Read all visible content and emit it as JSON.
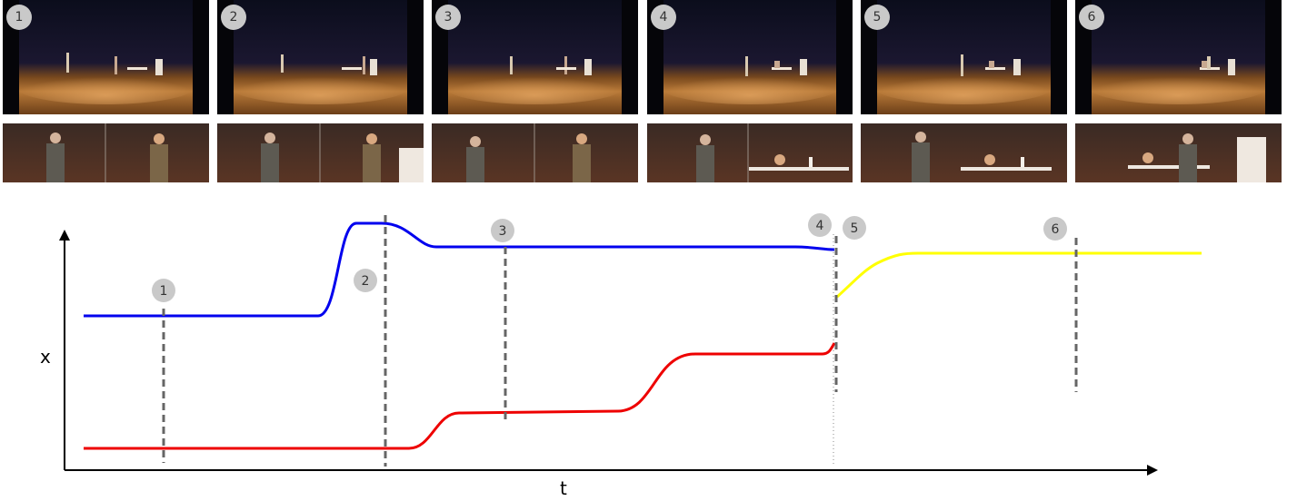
{
  "frames": [
    {
      "badge": "1"
    },
    {
      "badge": "2"
    },
    {
      "badge": "3"
    },
    {
      "badge": "4"
    },
    {
      "badge": "5"
    },
    {
      "badge": "6"
    }
  ],
  "diagram": {
    "x_axis_label": "t",
    "y_axis_label": "x",
    "markers": [
      {
        "label": "1"
      },
      {
        "label": "2"
      },
      {
        "label": "3"
      },
      {
        "label": "4"
      },
      {
        "label": "5"
      },
      {
        "label": "6"
      }
    ],
    "colors": {
      "upper_track": "#0000ee",
      "lower_track": "#ee0000",
      "after_cut_track": "#ffff00",
      "marker_line": "#666666",
      "cut_line": "#888888",
      "badge_fill": "#c9c9c9"
    }
  }
}
